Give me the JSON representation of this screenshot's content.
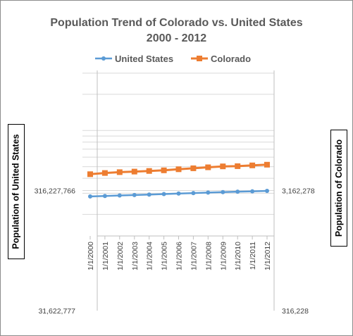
{
  "chart_data": {
    "type": "line",
    "title": [
      "Population Trend of Colorado vs. United States",
      "2000 - 2012"
    ],
    "categories": [
      "1/1/2000",
      "1/1/2001",
      "1/1/2002",
      "1/1/2003",
      "1/1/2004",
      "1/1/2005",
      "1/1/2006",
      "1/1/2007",
      "1/1/2008",
      "1/1/2009",
      "1/1/2010",
      "1/1/2011",
      "1/1/2012"
    ],
    "series": [
      {
        "name": "United States",
        "axis": "left",
        "color": "#5b9bd5",
        "marker": "circle",
        "values": [
          282200000,
          285000000,
          287600000,
          290100000,
          292800000,
          295500000,
          298400000,
          301200000,
          304100000,
          306800000,
          309300000,
          311600000,
          313900000
        ]
      },
      {
        "name": "Colorado",
        "axis": "right",
        "color": "#ed7d31",
        "marker": "square",
        "values": [
          4326000,
          4426000,
          4498000,
          4550000,
          4602000,
          4662000,
          4753000,
          4843000,
          4935000,
          5025000,
          5049000,
          5120000,
          5190000
        ]
      }
    ],
    "y_left": {
      "label": "Population of United States",
      "scale": "log",
      "ylim": [
        31622777,
        3162277660
      ],
      "ticks": [
        31622777,
        316227766
      ],
      "tick_labels": [
        "31,622,777",
        "316,227,766"
      ]
    },
    "y_right": {
      "label": "Population of Colorado",
      "scale": "log",
      "ylim": [
        316228,
        31622777
      ],
      "ticks": [
        316228,
        3162278
      ],
      "tick_labels": [
        "316,228",
        "3,162,278"
      ]
    },
    "legend": "top",
    "grid": true
  }
}
